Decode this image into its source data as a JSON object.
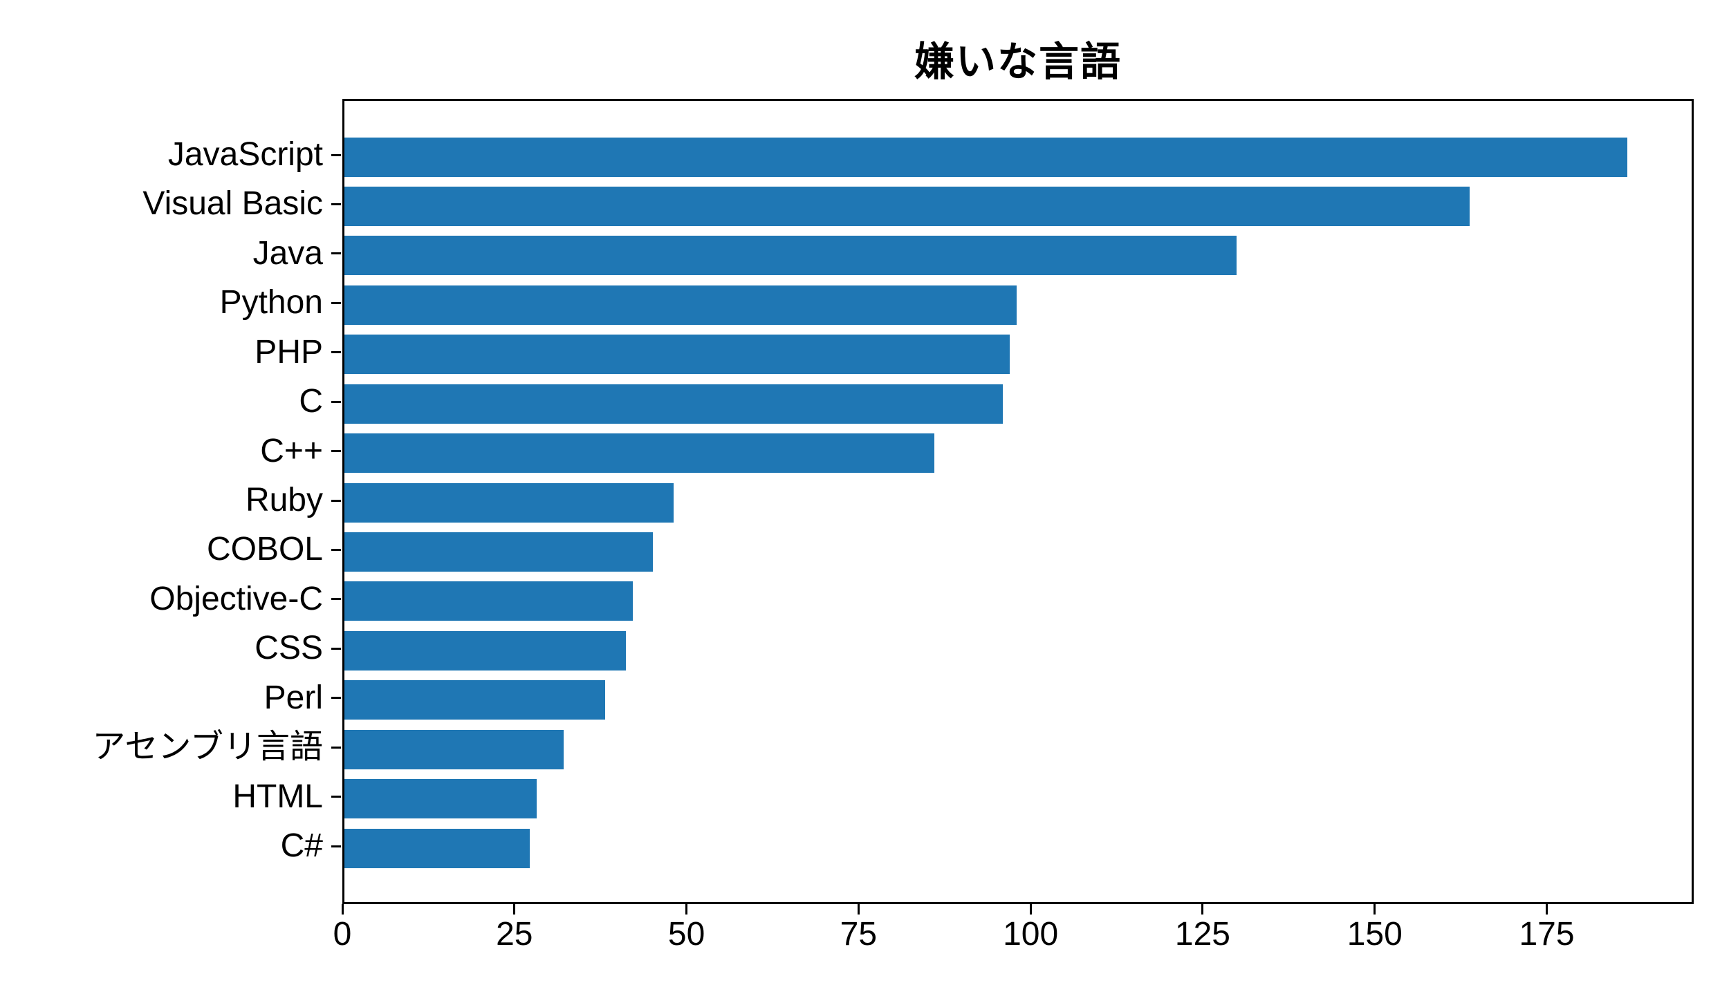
{
  "chart_data": {
    "type": "bar",
    "orientation": "horizontal",
    "title": "嫌いな言語",
    "categories": [
      "JavaScript",
      "Visual Basic",
      "Java",
      "Python",
      "PHP",
      "C",
      "C++",
      "Ruby",
      "COBOL",
      "Objective-C",
      "CSS",
      "Perl",
      "アセンブリ言語",
      "HTML",
      "C#"
    ],
    "values": [
      187,
      164,
      130,
      98,
      97,
      96,
      86,
      48,
      45,
      42,
      41,
      38,
      32,
      28,
      27
    ],
    "xlabel": "",
    "ylabel": "",
    "xlim": [
      0,
      196.35
    ],
    "x_ticks": [
      0,
      25,
      50,
      75,
      100,
      125,
      150,
      175
    ],
    "bar_color": "#1f77b4",
    "axis_color": "#000000",
    "grid": false,
    "legend": null
  }
}
